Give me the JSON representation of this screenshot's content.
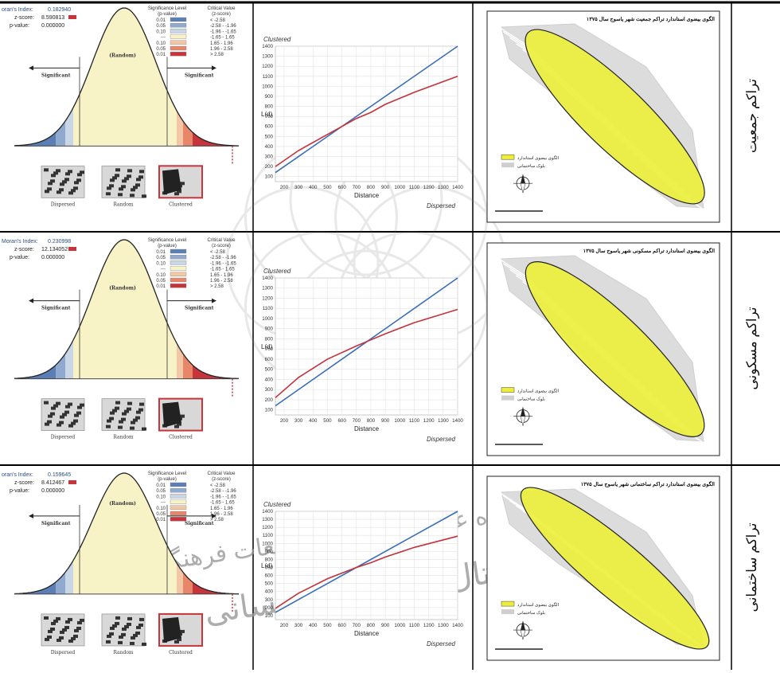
{
  "rows": [
    {
      "label": "تراکم جمعیت",
      "moran": {
        "index_label": "oran's Index:",
        "index": "0.182940",
        "z_label": "z-score:",
        "z": "8.590813",
        "p_label": "p-value:",
        "p": "0.000000"
      },
      "map_title": "الگوی بیضوی استاندارد تراکم جمعیت شهر یاسوج سال ۱۳۷۵",
      "map_legend": [
        "الگوی بیضوی استاندارد",
        "بلوک ساختمانی"
      ]
    },
    {
      "label": "تراکم مسکونی",
      "moran": {
        "index_label": "Moran's Index:",
        "index": "0.230998",
        "z_label": "z-score:",
        "z": "12.134052",
        "p_label": "p-value:",
        "p": "0.000000"
      },
      "map_title": "الگوی بیضوی استاندارد تراکم مسکونی شهر یاسوج سال ۱۳۷۵",
      "map_legend": [
        "الگوی بیضوی استاندارد",
        "بلوک ساختمانی"
      ]
    },
    {
      "label": "تراکم ساختمانی",
      "moran": {
        "index_label": "oran's Index:",
        "index": "0.159645",
        "z_label": "z-score:",
        "z": "8.412467",
        "p_label": "p-value:",
        "p": "0.000000"
      },
      "map_title": "الگوی بیضوی استاندارد تراکم ساختمانی شهر یاسوج سال ۱۳۷۵",
      "map_legend": [
        "الگوی بیضوی استاندارد",
        "بلوک ساختمانی"
      ]
    }
  ],
  "significance": {
    "header_left": [
      "Significance Level",
      "(p-value)"
    ],
    "header_right": [
      "Critical Value",
      "(z-score)"
    ],
    "levels": [
      {
        "p": "0.01",
        "z": "< -2.58",
        "color": "#5b7fb5"
      },
      {
        "p": "0.05",
        "z": "-2.58 - -1.96",
        "color": "#8fa9cf"
      },
      {
        "p": "0.10",
        "z": "-1.96 - -1.65",
        "color": "#c9d6e6"
      },
      {
        "p": "---",
        "z": "-1.65 - 1.65",
        "color": "#f8f2c7"
      },
      {
        "p": "0.10",
        "z": "1.65 - 1.96",
        "color": "#f3c7a6"
      },
      {
        "p": "0.05",
        "z": "1.96 - 2.58",
        "color": "#e8866a"
      },
      {
        "p": "0.01",
        "z": "> 2.58",
        "color": "#c6343c"
      }
    ],
    "labels": {
      "significant": "Significant",
      "random": "(Random)"
    },
    "patterns": [
      "Dispersed",
      "Random",
      "Clustered"
    ]
  },
  "kfunc": {
    "clustered": "Clustered",
    "dispersed": "Dispersed",
    "ylabel": "L(d)",
    "xlabel": "Distance",
    "xticks": [
      "200",
      "300",
      "400",
      "500",
      "600",
      "700",
      "800",
      "900",
      "1000",
      "1100",
      "1200",
      "1300",
      "1400"
    ],
    "yticks": [
      "100",
      "200",
      "300",
      "400",
      "500",
      "600",
      "700",
      "800",
      "900",
      "1000",
      "1100",
      "1200",
      "1300",
      "1400"
    ]
  },
  "colors": {
    "expected": "#3a6fb7",
    "observed": "#c4323b",
    "ellipse": "#ecee38",
    "curve": "#f7f2bf"
  },
  "chart_data": [
    {
      "type": "line",
      "xlabel": "Distance",
      "ylabel": "L(d)",
      "xlim": [
        140,
        1400
      ],
      "ylim": [
        50,
        1400
      ],
      "series": [
        {
          "x": [
            140,
            400,
            700,
            1000,
            1400
          ],
          "values": [
            140,
            400,
            700,
            1000,
            1400
          ]
        },
        {
          "x": [
            140,
            300,
            500,
            700,
            800,
            900,
            1100,
            1400
          ],
          "values": [
            200,
            360,
            520,
            680,
            740,
            820,
            940,
            1100
          ]
        }
      ]
    },
    {
      "type": "line",
      "xlabel": "Distance",
      "ylabel": "L(d)",
      "xlim": [
        140,
        1400
      ],
      "ylim": [
        50,
        1400
      ],
      "series": [
        {
          "x": [
            140,
            400,
            700,
            1000,
            1400
          ],
          "values": [
            140,
            400,
            700,
            1000,
            1400
          ]
        },
        {
          "x": [
            140,
            300,
            500,
            700,
            800,
            900,
            1100,
            1400
          ],
          "values": [
            220,
            420,
            600,
            730,
            790,
            850,
            960,
            1090
          ]
        }
      ]
    },
    {
      "type": "line",
      "xlabel": "Distance",
      "ylabel": "L(d)",
      "xlim": [
        140,
        1400
      ],
      "ylim": [
        50,
        1400
      ],
      "series": [
        {
          "x": [
            140,
            400,
            700,
            1000,
            1400
          ],
          "values": [
            140,
            400,
            700,
            1000,
            1400
          ]
        },
        {
          "x": [
            140,
            300,
            500,
            700,
            800,
            900,
            1100,
            1400
          ],
          "values": [
            190,
            380,
            560,
            700,
            760,
            830,
            950,
            1090
          ]
        }
      ]
    }
  ]
}
